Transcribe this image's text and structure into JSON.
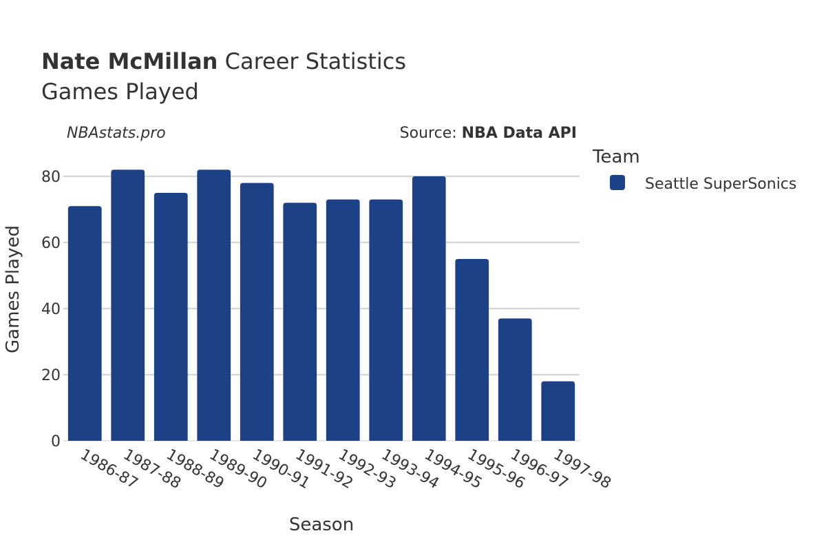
{
  "header": {
    "title_bold": "Nate McMillan",
    "title_rest": "Career Statistics",
    "subtitle": "Games Played"
  },
  "annotations": {
    "watermark": "NBAstats.pro",
    "source_label": "Source:",
    "source_value": "NBA Data API"
  },
  "legend": {
    "title": "Team",
    "items": [
      {
        "label": "Seattle SuperSonics",
        "color": "#1c4187"
      }
    ]
  },
  "chart_data": {
    "type": "bar",
    "title": "Nate McMillan Career Statistics",
    "subtitle": "Games Played",
    "xlabel": "Season",
    "ylabel": "Games Played",
    "categories": [
      "1986-87",
      "1987-88",
      "1988-89",
      "1989-90",
      "1990-91",
      "1991-92",
      "1992-93",
      "1993-94",
      "1994-95",
      "1995-96",
      "1996-97",
      "1997-98"
    ],
    "series": [
      {
        "name": "Seattle SuperSonics",
        "color": "#1c4187",
        "values": [
          71,
          82,
          75,
          82,
          78,
          72,
          73,
          73,
          80,
          55,
          37,
          18
        ]
      }
    ],
    "ylim": [
      0,
      85
    ],
    "yticks": [
      0,
      20,
      40,
      60,
      80
    ],
    "grid": true,
    "legend_position": "right"
  }
}
